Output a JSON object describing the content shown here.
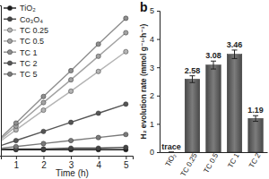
{
  "chart_data": [
    {
      "type": "line",
      "xlabel": "Time (h)",
      "x": [
        0,
        1,
        2,
        3,
        4,
        5
      ],
      "xlim": [
        0.45,
        5.25
      ],
      "xticks": [
        1,
        2,
        3,
        4,
        5
      ],
      "ylim": [
        -0.8,
        19
      ],
      "tick_labels": "x",
      "legend": "upper left",
      "marker": "circle",
      "series": [
        {
          "name": "TiO₂",
          "color": "#1a1a1a",
          "values": [
            0,
            0,
            0,
            0,
            0,
            0
          ]
        },
        {
          "name": "Co₃O₄",
          "color": "#444444",
          "values": [
            0,
            0.1,
            0.1,
            0.2,
            0.2,
            0.3
          ]
        },
        {
          "name": "TC 0.25",
          "color": "#b4b4b4",
          "values": [
            0,
            2.6,
            5.2,
            7.7,
            10.3,
            12.9
          ]
        },
        {
          "name": "TC 0.5",
          "color": "#a2a2a2",
          "values": [
            0,
            3.1,
            6.2,
            9.2,
            12.3,
            15.4
          ]
        },
        {
          "name": "TC 1",
          "color": "#8e8e8e",
          "values": [
            0,
            3.5,
            7.0,
            10.4,
            13.9,
            17.3
          ]
        },
        {
          "name": "TC 2",
          "color": "#555555",
          "values": [
            0,
            1.2,
            2.4,
            3.6,
            4.8,
            6.0
          ]
        },
        {
          "name": "TC 5",
          "color": "#7a7a7a",
          "values": [
            0,
            0.4,
            0.8,
            1.2,
            1.6,
            2.0
          ]
        }
      ]
    },
    {
      "type": "bar",
      "title": "b",
      "ylabel": "H₂ evolution rate (mmol g⁻¹·h⁻¹)",
      "categories": [
        "TiO₂",
        "TC 0.25",
        "TC 0.5",
        "TC 1",
        "TC 2"
      ],
      "values": [
        0,
        2.58,
        3.08,
        3.46,
        1.19
      ],
      "value_labels": [
        "trace",
        "2.58",
        "3.08",
        "3.46",
        "1.19"
      ],
      "errors": [
        0,
        0.12,
        0.14,
        0.15,
        0.1
      ],
      "ylim": [
        0,
        5
      ],
      "yticks": [
        0,
        1,
        2,
        3,
        4,
        5
      ],
      "color": "#5a5a5a",
      "data_labels": true
    }
  ]
}
